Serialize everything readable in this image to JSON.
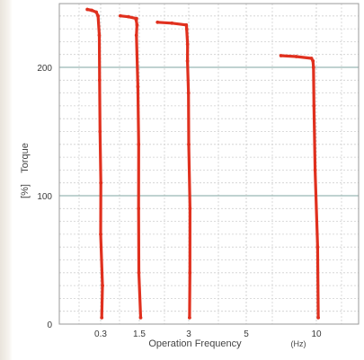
{
  "chart_data": {
    "type": "line",
    "xlabel": "Operation Frequency",
    "xlabel_unit": "(Hz)",
    "ylabel": "Torque",
    "ylabel_unit": "[%]",
    "ylim": [
      0,
      250
    ],
    "y_ticks": [
      {
        "value": 0,
        "label": "0"
      },
      {
        "value": 100,
        "label": "100"
      },
      {
        "value": 200,
        "label": "200"
      }
    ],
    "x_ticks": [
      {
        "label": "0.3",
        "pos": 0.3
      },
      {
        "label": "1.5",
        "pos": 1.5
      },
      {
        "label": "3",
        "pos": 3
      },
      {
        "label": "5",
        "pos": 5
      },
      {
        "label": "10",
        "pos": 10
      }
    ],
    "grid": true,
    "line_color": "#e0301e",
    "series": [
      {
        "x": [
          0.3,
          0.3,
          0.3,
          0.3,
          0.3,
          0.3,
          0.3,
          0.3,
          0.3
        ],
        "y": [
          5,
          30,
          70,
          110,
          150,
          190,
          225,
          240,
          243
        ]
      },
      {
        "x": [
          1.5,
          1.5,
          1.5,
          1.5,
          1.5,
          1.5,
          1.5,
          1.5,
          1.5
        ],
        "y": [
          5,
          40,
          90,
          140,
          185,
          225,
          233,
          237,
          238
        ]
      },
      {
        "x": [
          3,
          3,
          3,
          3,
          3,
          3,
          3,
          3,
          3
        ],
        "y": [
          5,
          40,
          90,
          140,
          180,
          205,
          218,
          230,
          233
        ]
      },
      {
        "x": [
          10,
          10,
          10,
          10,
          10,
          10,
          10
        ],
        "y": [
          5,
          60,
          120,
          170,
          200,
          205,
          207
        ]
      }
    ]
  }
}
